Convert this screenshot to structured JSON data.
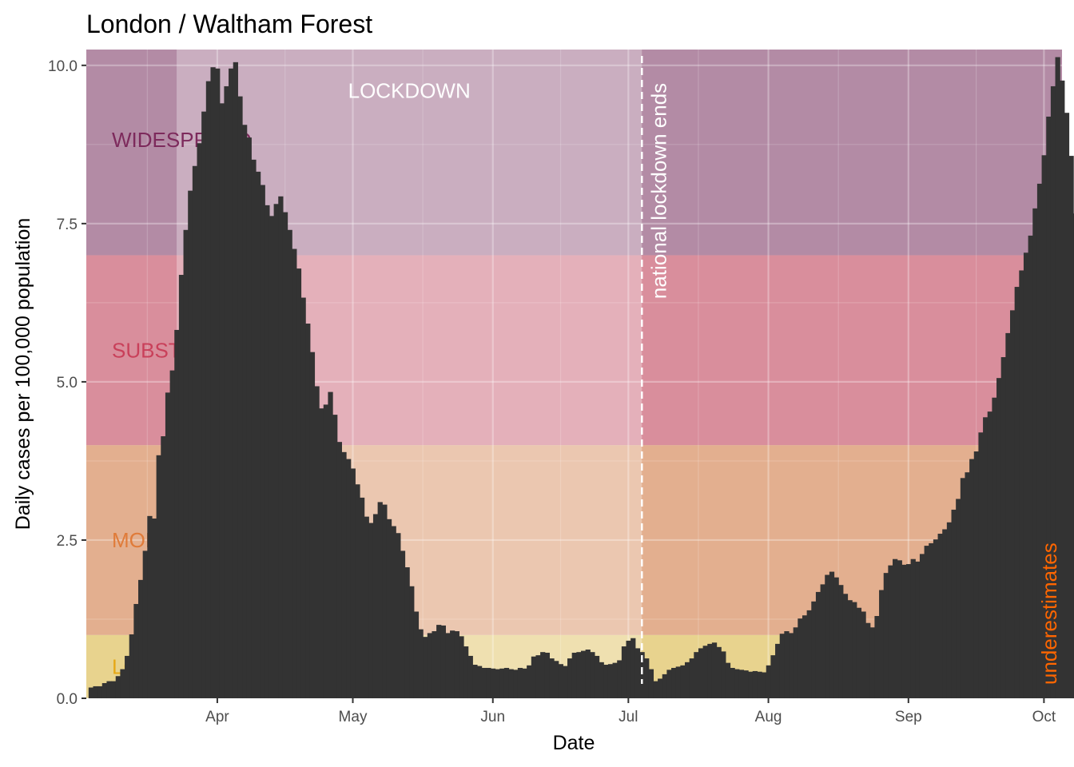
{
  "chart_data": {
    "type": "bar",
    "title": "London / Waltham Forest",
    "xlabel": "Date",
    "ylabel": "Daily cases per 100,000 population",
    "ylim": [
      0,
      10.25
    ],
    "xlim": [
      "2020-03-03",
      "2020-10-05"
    ],
    "grid": true,
    "legend": "none",
    "x_ticks": [
      {
        "date": "2020-04-01",
        "label": "Apr"
      },
      {
        "date": "2020-05-01",
        "label": "May"
      },
      {
        "date": "2020-06-01",
        "label": "Jun"
      },
      {
        "date": "2020-07-01",
        "label": "Jul"
      },
      {
        "date": "2020-08-01",
        "label": "Aug"
      },
      {
        "date": "2020-09-01",
        "label": "Sep"
      },
      {
        "date": "2020-10-01",
        "label": "Oct"
      }
    ],
    "y_ticks": [
      {
        "value": 0,
        "label": "0.0"
      },
      {
        "value": 2.5,
        "label": "2.5"
      },
      {
        "value": 5,
        "label": "5.0"
      },
      {
        "value": 7.5,
        "label": "7.5"
      },
      {
        "value": 10,
        "label": "10.0"
      }
    ],
    "bands": [
      {
        "name": "LOW",
        "label": "LOW",
        "ymin": 0,
        "ymax": 1,
        "color": "#e8d38e",
        "text_color": "#e6a817"
      },
      {
        "name": "MODERATE",
        "label": "MODERATE",
        "ymin": 1,
        "ymax": 4,
        "color": "#e3af8f",
        "text_color": "#e07b39"
      },
      {
        "name": "SUBSTANTIAL",
        "label": "SUBSTANTIAL",
        "ymin": 4,
        "ymax": 7,
        "color": "#d98e9c",
        "text_color": "#c9405a"
      },
      {
        "name": "WIDESPREAD",
        "label": "WIDESPREAD",
        "ymin": 7,
        "ymax": 10.25,
        "color": "#b38ba5",
        "text_color": "#7d2a5c"
      }
    ],
    "lockdown": {
      "label": "LOCKDOWN",
      "start": "2020-03-23",
      "end": "2020-07-04",
      "color": "#ffffff",
      "text_color": "#ffffff"
    },
    "vline": {
      "date": "2020-07-04",
      "label": "national lockdown ends",
      "color": "#ffffff"
    },
    "underestimates": {
      "label": "underestimates",
      "color": "#ff6600"
    },
    "bar_color": "#333333",
    "start_date": "2020-03-04",
    "values": [
      0.17,
      0.19,
      0.19,
      0.24,
      0.27,
      0.27,
      0.35,
      0.46,
      0.67,
      1.01,
      1.49,
      1.87,
      2.33,
      2.88,
      2.84,
      3.84,
      4.14,
      4.83,
      5.18,
      5.82,
      6.69,
      7.4,
      8.02,
      8.41,
      8.77,
      9.27,
      9.75,
      9.97,
      9.95,
      9.4,
      9.67,
      9.95,
      10.05,
      9.51,
      9.06,
      8.86,
      8.51,
      8.32,
      8.11,
      7.79,
      7.62,
      7.81,
      7.93,
      7.68,
      7.4,
      7.1,
      6.79,
      6.33,
      5.92,
      5.47,
      4.93,
      4.58,
      4.64,
      4.84,
      4.48,
      4.05,
      3.89,
      3.78,
      3.63,
      3.38,
      3.17,
      2.87,
      2.77,
      2.91,
      3.1,
      3.06,
      2.83,
      2.72,
      2.61,
      2.33,
      2.07,
      1.77,
      1.37,
      1.09,
      0.97,
      1.03,
      1.06,
      1.16,
      1.15,
      1.03,
      1.07,
      1.06,
      0.98,
      0.82,
      0.67,
      0.53,
      0.51,
      0.48,
      0.48,
      0.47,
      0.46,
      0.47,
      0.48,
      0.46,
      0.45,
      0.48,
      0.47,
      0.52,
      0.66,
      0.68,
      0.73,
      0.72,
      0.63,
      0.59,
      0.54,
      0.51,
      0.63,
      0.72,
      0.73,
      0.75,
      0.77,
      0.73,
      0.67,
      0.57,
      0.53,
      0.54,
      0.56,
      0.6,
      0.82,
      0.91,
      0.95,
      0.79,
      0.73,
      0.63,
      0.46,
      0.27,
      0.31,
      0.38,
      0.45,
      0.48,
      0.5,
      0.52,
      0.57,
      0.63,
      0.73,
      0.79,
      0.83,
      0.86,
      0.88,
      0.81,
      0.74,
      0.56,
      0.48,
      0.46,
      0.45,
      0.44,
      0.42,
      0.43,
      0.42,
      0.41,
      0.52,
      0.68,
      0.86,
      1.02,
      1.06,
      1.03,
      1.12,
      1.26,
      1.31,
      1.39,
      1.53,
      1.68,
      1.8,
      1.95,
      2.0,
      1.91,
      1.79,
      1.65,
      1.55,
      1.52,
      1.43,
      1.37,
      1.19,
      1.12,
      1.3,
      1.71,
      1.98,
      2.1,
      2.2,
      2.18,
      2.11,
      2.12,
      2.2,
      2.16,
      2.28,
      2.41,
      2.45,
      2.51,
      2.6,
      2.67,
      2.78,
      2.98,
      3.15,
      3.48,
      3.57,
      3.78,
      3.9,
      4.2,
      4.44,
      4.53,
      4.75,
      5.06,
      5.39,
      5.77,
      6.13,
      6.5,
      6.76,
      7.04,
      7.31,
      7.74,
      8.13,
      8.58,
      9.19,
      9.67,
      10.13,
      9.76,
      9.25,
      8.57,
      7.66,
      7.13,
      6.23
    ]
  }
}
